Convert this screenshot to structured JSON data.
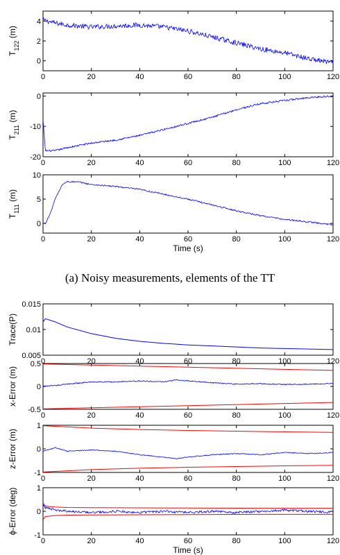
{
  "caption_a": "(a) Noisy measurements, elements of the TT",
  "colors": {
    "estimate": "#0000ff",
    "bound": "#ff0000",
    "axis": "#000000"
  },
  "chart_data": [
    {
      "id": "t122",
      "type": "line",
      "ylabel": {
        "main": "T",
        "sub": "122",
        "tail": " (m)"
      },
      "xlim": [
        0,
        120
      ],
      "ylim": [
        -1,
        5
      ],
      "xticks": [
        0,
        20,
        40,
        60,
        80,
        100,
        120
      ],
      "yticks": [
        0,
        2,
        4
      ],
      "series": [
        {
          "role": "estimate",
          "noise": 0.25,
          "x": [
            0,
            5,
            10,
            20,
            30,
            40,
            50,
            60,
            70,
            80,
            90,
            100,
            110,
            120
          ],
          "y": [
            4.1,
            3.8,
            3.6,
            3.4,
            3.5,
            3.6,
            3.4,
            3.0,
            2.4,
            1.8,
            1.2,
            0.8,
            0.2,
            -0.2
          ]
        }
      ]
    },
    {
      "id": "t211",
      "type": "line",
      "ylabel": {
        "main": "T",
        "sub": "211",
        "tail": " (m)"
      },
      "xlim": [
        0,
        120
      ],
      "ylim": [
        -20,
        1
      ],
      "xticks": [
        0,
        20,
        40,
        60,
        80,
        100,
        120
      ],
      "yticks": [
        -20,
        -10,
        0
      ],
      "series": [
        {
          "role": "estimate",
          "noise": 0.3,
          "x": [
            0,
            1,
            5,
            10,
            20,
            30,
            40,
            50,
            60,
            70,
            80,
            90,
            100,
            110,
            120
          ],
          "y": [
            -8,
            -18,
            -18,
            -17,
            -15.5,
            -14.5,
            -13,
            -11,
            -9,
            -7,
            -4.5,
            -2.5,
            -1.5,
            -0.5,
            0
          ]
        }
      ]
    },
    {
      "id": "t111",
      "type": "line",
      "ylabel": {
        "main": "T",
        "sub": "111",
        "tail": " (m)"
      },
      "xlabel": "Time (s)",
      "xlim": [
        0,
        120
      ],
      "ylim": [
        -2,
        10
      ],
      "xticks": [
        0,
        20,
        40,
        60,
        80,
        100,
        120
      ],
      "yticks": [
        0,
        5,
        10
      ],
      "series": [
        {
          "role": "estimate",
          "noise": 0.15,
          "x": [
            0,
            1,
            3,
            5,
            8,
            10,
            15,
            20,
            30,
            40,
            50,
            60,
            70,
            80,
            90,
            100,
            110,
            120
          ],
          "y": [
            0,
            0,
            2,
            5,
            8,
            8.6,
            8.5,
            8,
            7.6,
            7,
            6,
            5,
            3.8,
            2.6,
            1.6,
            0.8,
            0.3,
            -0.3
          ]
        }
      ]
    },
    {
      "id": "trace",
      "type": "line",
      "ylabel": {
        "main": "Trace(P)",
        "sub": "",
        "tail": ""
      },
      "xlim": [
        0,
        120
      ],
      "ylim": [
        0.005,
        0.015
      ],
      "xticks": [
        0,
        20,
        40,
        60,
        80,
        100,
        120
      ],
      "yticks": [
        0.005,
        0.01,
        0.015
      ],
      "series": [
        {
          "role": "estimate",
          "noise": 0,
          "x": [
            0,
            1,
            5,
            10,
            20,
            30,
            40,
            50,
            60,
            70,
            80,
            90,
            100,
            110,
            120
          ],
          "y": [
            0.0115,
            0.0121,
            0.0115,
            0.0105,
            0.0092,
            0.0083,
            0.0077,
            0.0073,
            0.007,
            0.0068,
            0.0066,
            0.0064,
            0.0063,
            0.0062,
            0.0061
          ]
        }
      ]
    },
    {
      "id": "xerr",
      "type": "line",
      "ylabel": {
        "main": "x-Error (m)",
        "sub": "",
        "tail": ""
      },
      "xlim": [
        0,
        120
      ],
      "ylim": [
        -0.5,
        0.5
      ],
      "xticks": [
        0,
        20,
        40,
        60,
        80,
        100,
        120
      ],
      "yticks": [
        -0.5,
        0,
        0.5
      ],
      "series": [
        {
          "role": "bound",
          "noise": 0,
          "x": [
            0,
            120
          ],
          "y": [
            0.49,
            0.35
          ]
        },
        {
          "role": "bound",
          "noise": 0,
          "x": [
            0,
            120
          ],
          "y": [
            -0.49,
            -0.35
          ]
        },
        {
          "role": "estimate",
          "noise": 0.012,
          "x": [
            0,
            5,
            10,
            20,
            30,
            40,
            50,
            55,
            60,
            70,
            80,
            90,
            100,
            110,
            120
          ],
          "y": [
            0.0,
            0.02,
            0.05,
            0.1,
            0.1,
            0.12,
            0.1,
            0.14,
            0.12,
            0.08,
            0.05,
            0.06,
            0.04,
            0.05,
            0.06
          ]
        }
      ]
    },
    {
      "id": "zerr",
      "type": "line",
      "ylabel": {
        "main": "z-Error (m)",
        "sub": "",
        "tail": ""
      },
      "xlim": [
        0,
        120
      ],
      "ylim": [
        -1,
        1
      ],
      "xticks": [
        0,
        20,
        40,
        60,
        80,
        100,
        120
      ],
      "yticks": [
        -1,
        0,
        1
      ],
      "series": [
        {
          "role": "bound",
          "noise": 0,
          "x": [
            0,
            20,
            40,
            60,
            80,
            100,
            120
          ],
          "y": [
            0.98,
            0.88,
            0.82,
            0.78,
            0.75,
            0.72,
            0.7
          ]
        },
        {
          "role": "bound",
          "noise": 0,
          "x": [
            0,
            20,
            40,
            60,
            80,
            100,
            120
          ],
          "y": [
            -0.98,
            -0.88,
            -0.82,
            -0.78,
            -0.75,
            -0.72,
            -0.7
          ]
        },
        {
          "role": "estimate",
          "noise": 0.02,
          "x": [
            0,
            5,
            10,
            20,
            30,
            40,
            50,
            55,
            60,
            70,
            80,
            90,
            100,
            110,
            120
          ],
          "y": [
            -0.1,
            0.05,
            -0.1,
            -0.05,
            -0.1,
            -0.25,
            -0.35,
            -0.42,
            -0.35,
            -0.25,
            -0.2,
            -0.25,
            -0.15,
            -0.2,
            -0.15
          ]
        }
      ]
    },
    {
      "id": "phierr",
      "type": "line",
      "ylabel": {
        "main": "ϕ-Error (deg)",
        "sub": "",
        "tail": ""
      },
      "xlabel": "Time (s)",
      "xlim": [
        0,
        120
      ],
      "ylim": [
        -1,
        1
      ],
      "xticks": [
        0,
        20,
        40,
        60,
        80,
        100,
        120
      ],
      "yticks": [
        -1,
        0,
        1
      ],
      "series": [
        {
          "role": "bound",
          "noise": 0,
          "x": [
            0,
            1,
            5,
            10,
            30,
            60,
            90,
            120
          ],
          "y": [
            0.35,
            0.22,
            0.18,
            0.16,
            0.15,
            0.14,
            0.13,
            0.13
          ]
        },
        {
          "role": "bound",
          "noise": 0,
          "x": [
            0,
            1,
            5,
            10,
            30,
            60,
            90,
            120
          ],
          "y": [
            -0.35,
            -0.22,
            -0.18,
            -0.16,
            -0.15,
            -0.14,
            -0.13,
            -0.13
          ]
        },
        {
          "role": "estimate",
          "noise": 0.05,
          "x": [
            0,
            1,
            5,
            10,
            20,
            30,
            40,
            50,
            60,
            70,
            80,
            90,
            100,
            110,
            120
          ],
          "y": [
            0.3,
            0.15,
            0.05,
            0.0,
            -0.05,
            0.0,
            -0.05,
            0.0,
            -0.05,
            0.0,
            -0.05,
            0.0,
            0.05,
            0.0,
            -0.05
          ]
        }
      ]
    }
  ]
}
